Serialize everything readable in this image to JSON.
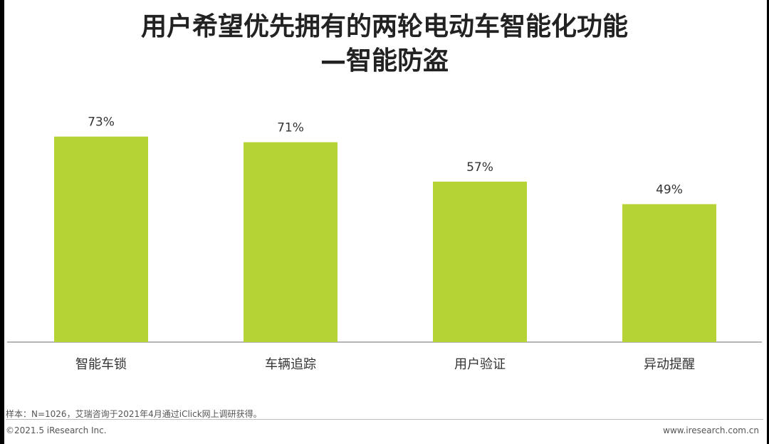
{
  "title_lines": [
    "用户希望优先拥有的两轮电动车智能化功能",
    "—智能防盗"
  ],
  "chart_data": {
    "type": "bar",
    "categories": [
      "智能车锁",
      "车辆追踪",
      "用户验证",
      "异动提醒"
    ],
    "values": [
      73,
      71,
      57,
      49
    ],
    "data_labels": [
      "73%",
      "71%",
      "57%",
      "49%"
    ],
    "title": "用户希望优先拥有的两轮电动车智能化功能—智能防盗",
    "xlabel": "",
    "ylabel": "",
    "ylim": [
      0,
      100
    ],
    "grid": false,
    "legend": "none",
    "bar_color": "#b5d334"
  },
  "footer": {
    "source": "样本：N=1026，艾瑞咨询于2021年4月通过iClick网上调研获得。",
    "copyright": "©2021.5 iResearch Inc.",
    "site": "www.iresearch.com.cn"
  }
}
